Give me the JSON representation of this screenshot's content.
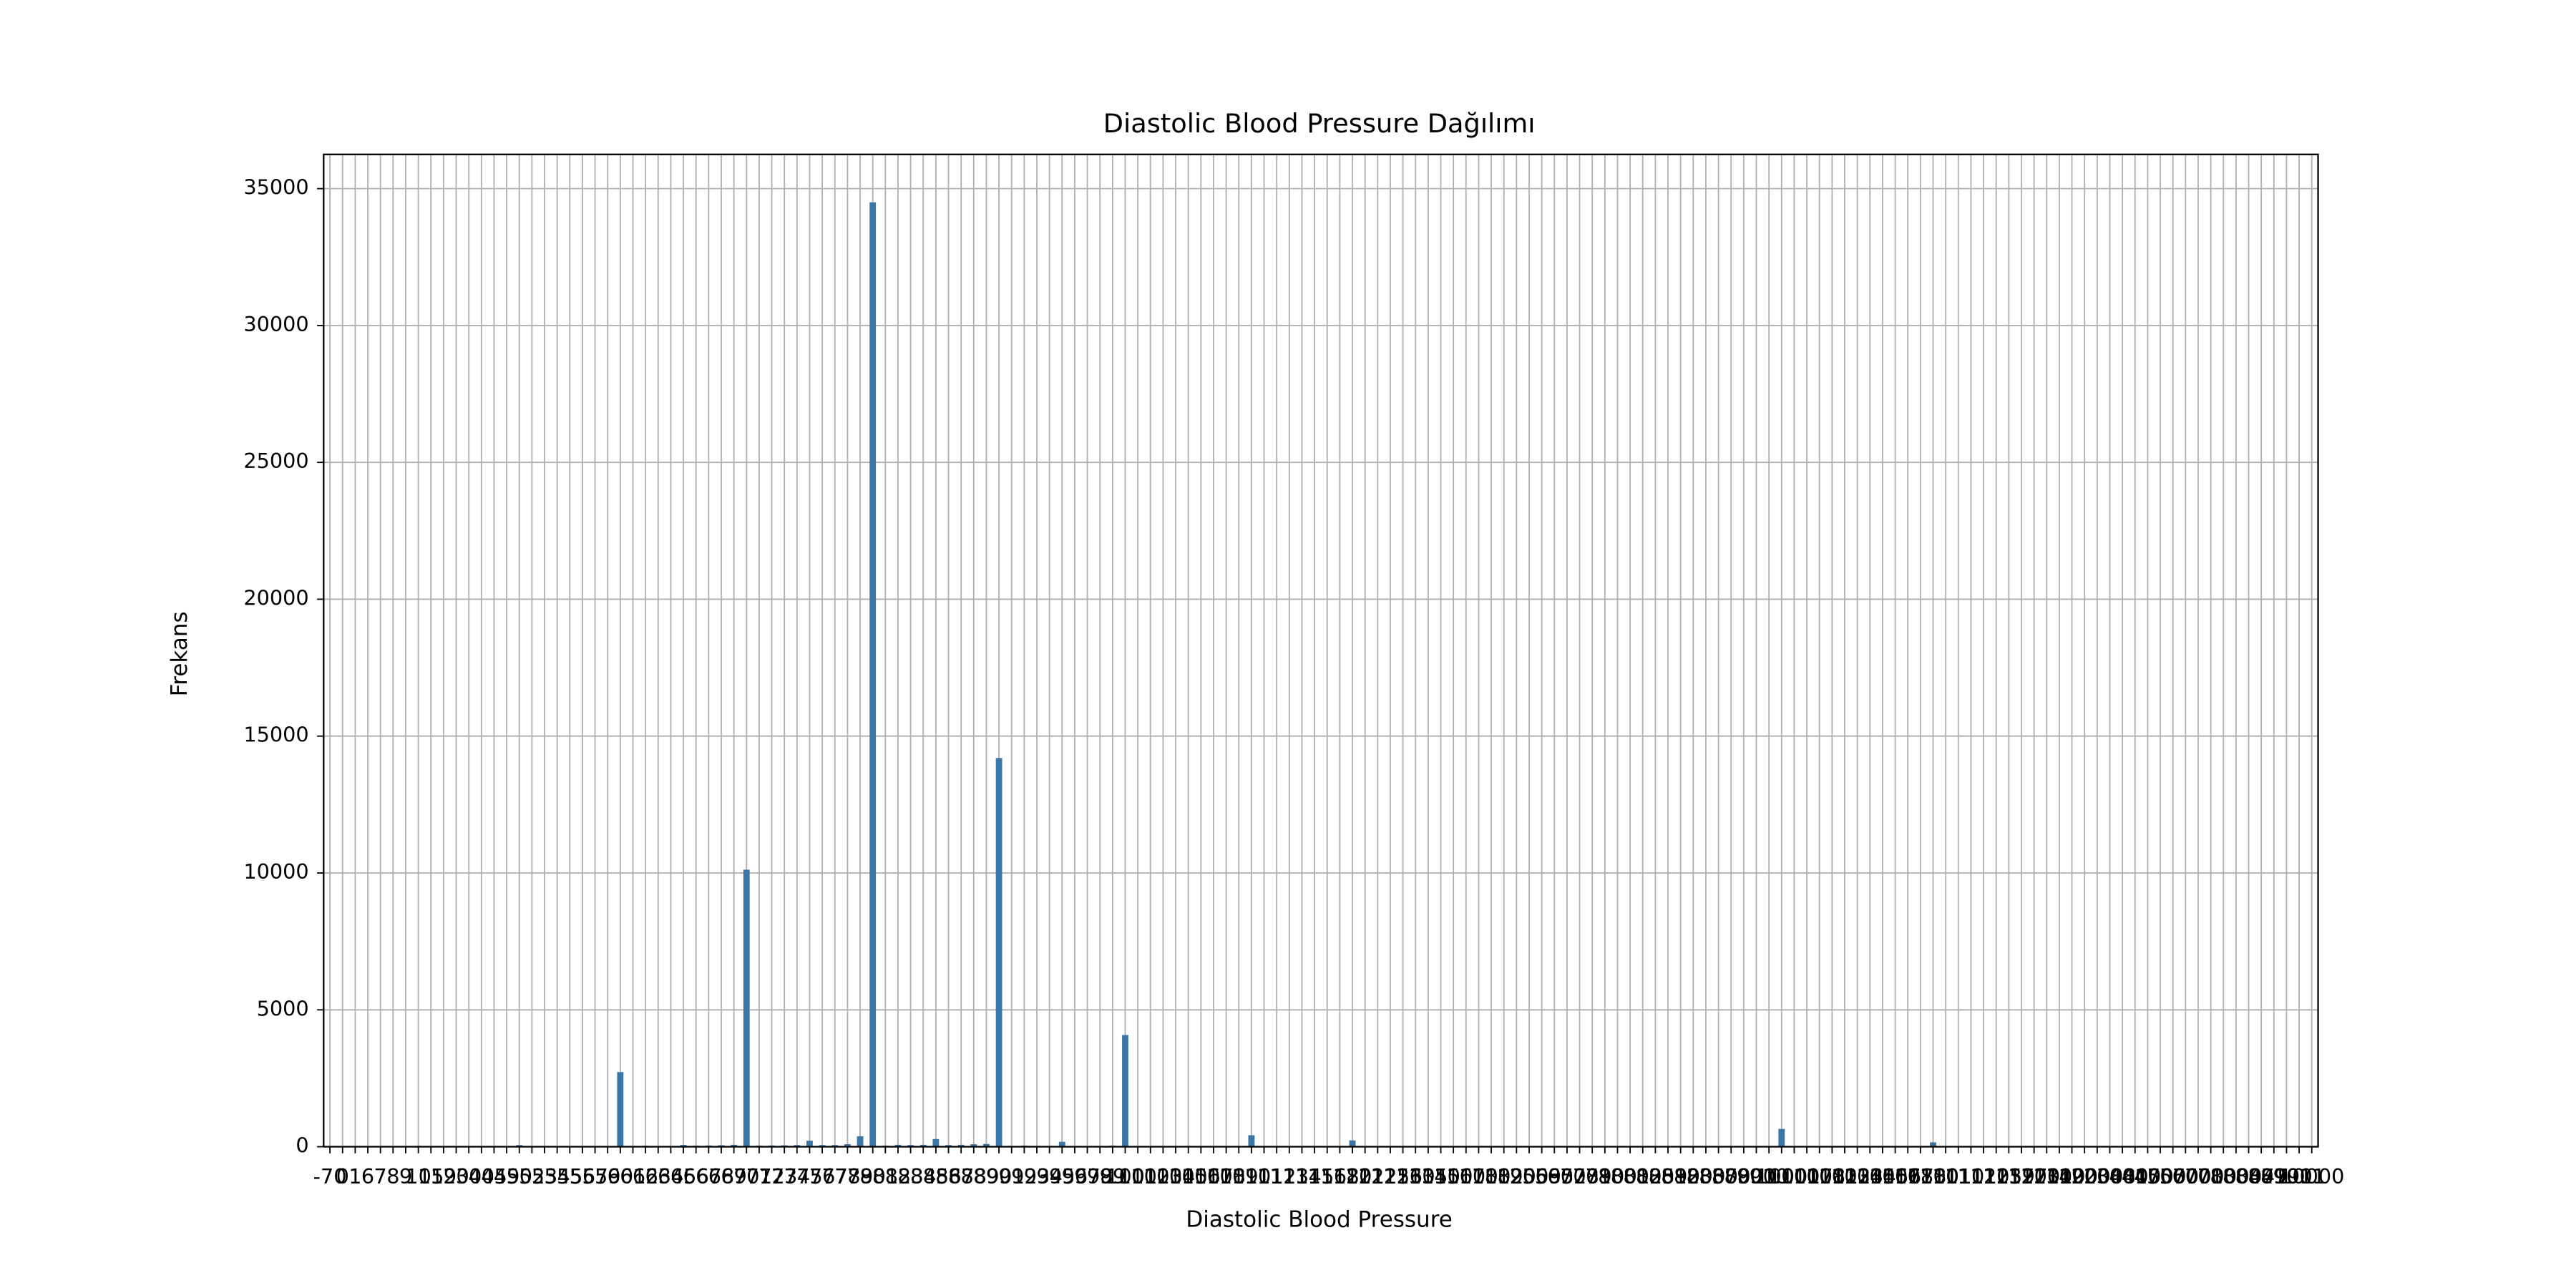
{
  "chart_data": {
    "type": "bar",
    "title": "Diastolic Blood Pressure Dağılımı",
    "xlabel": "Diastolic Blood Pressure",
    "ylabel": "Frekans",
    "color": "#3b76a8",
    "grid": true,
    "ylim": [
      0,
      36250
    ],
    "yticks": [
      0,
      5000,
      10000,
      15000,
      20000,
      25000,
      30000,
      35000
    ],
    "categories": [
      -70,
      0,
      1,
      6,
      7,
      8,
      9,
      10,
      15,
      19,
      20,
      30,
      40,
      45,
      49,
      50,
      52,
      53,
      54,
      55,
      56,
      57,
      59,
      60,
      61,
      62,
      63,
      64,
      65,
      66,
      67,
      68,
      69,
      70,
      71,
      72,
      73,
      74,
      75,
      76,
      77,
      78,
      79,
      80,
      81,
      82,
      83,
      84,
      85,
      86,
      87,
      88,
      89,
      90,
      91,
      92,
      93,
      94,
      95,
      96,
      97,
      98,
      99,
      100,
      101,
      102,
      103,
      104,
      105,
      106,
      107,
      108,
      109,
      110,
      111,
      112,
      113,
      114,
      115,
      116,
      118,
      120,
      121,
      122,
      125,
      126,
      130,
      135,
      140,
      150,
      160,
      170,
      180,
      182,
      190,
      200,
      569,
      585,
      602,
      708,
      709,
      710,
      800,
      801,
      802,
      805,
      809,
      810,
      820,
      830,
      850,
      870,
      880,
      900,
      910,
      1000,
      1001,
      1007,
      1008,
      1011,
      1022,
      1033,
      1044,
      1055,
      1066,
      1077,
      1088,
      1100,
      1101,
      1110,
      1111,
      1120,
      1125,
      1139,
      1177,
      1200,
      1211,
      1300,
      1400,
      1900,
      2000,
      2088,
      3000,
      4000,
      4100,
      4700,
      5000,
      5700,
      6000,
      7000,
      7100,
      8000,
      8044,
      8077,
      8099,
      8100,
      9011,
      10000
    ],
    "values": [
      1,
      21,
      2,
      1,
      1,
      2,
      1,
      33,
      1,
      1,
      8,
      5,
      12,
      1,
      1,
      60,
      2,
      3,
      2,
      5,
      7,
      5,
      8,
      2727,
      30,
      35,
      25,
      25,
      65,
      40,
      45,
      55,
      70,
      10120,
      40,
      45,
      50,
      60,
      220,
      60,
      60,
      90,
      380,
      34500,
      40,
      70,
      60,
      70,
      280,
      60,
      70,
      90,
      100,
      14200,
      30,
      40,
      30,
      30,
      180,
      20,
      25,
      30,
      40,
      4080,
      10,
      20,
      15,
      12,
      30,
      10,
      8,
      6,
      10,
      420,
      5,
      3,
      2,
      3,
      10,
      3,
      2,
      230,
      2,
      3,
      2,
      1,
      8,
      2,
      5,
      10,
      3,
      2,
      4,
      1,
      2,
      3,
      1,
      1,
      1,
      1,
      1,
      3,
      2,
      1,
      1,
      1,
      1,
      3,
      1,
      1,
      1,
      2,
      1,
      3,
      1,
      650,
      3,
      1,
      1,
      1,
      1,
      1,
      1,
      1,
      1,
      1,
      1,
      160,
      2,
      3,
      2,
      1,
      1,
      1,
      1,
      5,
      1,
      3,
      1,
      1,
      5,
      1,
      2,
      2,
      1,
      1,
      3,
      1,
      1,
      2,
      1,
      4,
      1,
      1,
      1,
      2,
      1,
      2
    ]
  }
}
